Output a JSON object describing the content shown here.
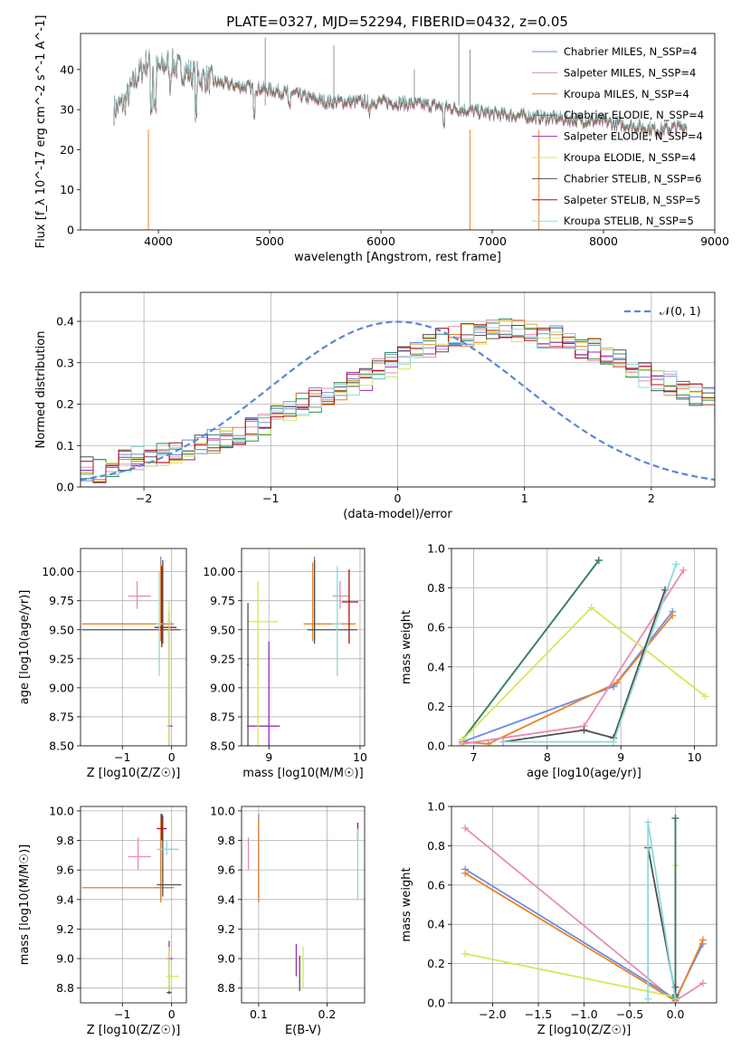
{
  "figure_title": "PLATE=0327, MJD=52294, FIBERID=0432, z=0.05",
  "colors": {
    "chabrier_miles": "#6a8fe0",
    "salpeter_miles": "#e88ab8",
    "kroupa_miles": "#e8822a",
    "chabrier_elodie": "#2e8b57",
    "salpeter_elodie": "#9a2db5",
    "kroupa_elodie": "#d4e85a",
    "chabrier_stelib": "#505050",
    "salpeter_stelib": "#b01010",
    "kroupa_stelib": "#8fd9d9",
    "normal": "#5b87d6"
  },
  "chart_data": [
    {
      "id": "spectrum",
      "type": "line",
      "xlabel": "wavelength [Angstrom, rest frame]",
      "ylabel": "Flux [f_λ 10^-17 erg cm^-2 s^-1 A^-1]",
      "xlim": [
        3300,
        9000
      ],
      "ylim": [
        0,
        49
      ],
      "xticks": [
        4000,
        5000,
        6000,
        7000,
        8000,
        9000
      ],
      "yticks": [
        0,
        10,
        20,
        30,
        40
      ],
      "legend": [
        {
          "name": "Chabrier MILES, N_SSP=4",
          "color": "chabrier_miles"
        },
        {
          "name": "Salpeter MILES, N_SSP=4",
          "color": "salpeter_miles"
        },
        {
          "name": "Kroupa MILES, N_SSP=4",
          "color": "kroupa_miles"
        },
        {
          "name": "Chabrier ELODIE, N_SSP=4",
          "color": "chabrier_elodie"
        },
        {
          "name": "Salpeter ELODIE, N_SSP=4",
          "color": "salpeter_elodie"
        },
        {
          "name": "Kroupa ELODIE, N_SSP=4",
          "color": "kroupa_elodie"
        },
        {
          "name": "Chabrier STELIB, N_SSP=6",
          "color": "chabrier_stelib"
        },
        {
          "name": "Salpeter STELIB, N_SSP=5",
          "color": "salpeter_stelib"
        },
        {
          "name": "Kroupa STELIB, N_SSP=5",
          "color": "kroupa_stelib"
        }
      ],
      "data": {
        "x": [
          3600,
          3700,
          3800,
          3900,
          4000,
          4100,
          4200,
          4300,
          4400,
          4500,
          4700,
          5000,
          5200,
          5500,
          6000,
          6500,
          7000,
          7500,
          8000,
          8500,
          8750
        ],
        "y": [
          30,
          32,
          38,
          42,
          40,
          42,
          40,
          39,
          38,
          37,
          36,
          35,
          34,
          32,
          32,
          31,
          29,
          28,
          27,
          25,
          26
        ]
      }
    },
    {
      "id": "residuals",
      "type": "line",
      "xlabel": "(data-model)/error",
      "ylabel": "Normed distribution",
      "xlim": [
        -2.5,
        2.5
      ],
      "ylim": [
        0,
        0.47
      ],
      "xticks": [
        -2,
        -1,
        0,
        1,
        2
      ],
      "yticks": [
        0.0,
        0.1,
        0.2,
        0.3,
        0.4
      ],
      "legend": [
        {
          "name": "𝒩(0, 1)",
          "color": "normal"
        }
      ],
      "bin_edges_start": -2.5,
      "bin_width": 0.1,
      "hist_mean": [
        0.045,
        0.04,
        0.045,
        0.06,
        0.07,
        0.075,
        0.08,
        0.085,
        0.09,
        0.1,
        0.11,
        0.12,
        0.13,
        0.14,
        0.155,
        0.17,
        0.18,
        0.2,
        0.21,
        0.22,
        0.235,
        0.25,
        0.26,
        0.28,
        0.295,
        0.31,
        0.33,
        0.34,
        0.355,
        0.36,
        0.365,
        0.37,
        0.375,
        0.38,
        0.375,
        0.37,
        0.365,
        0.36,
        0.35,
        0.34,
        0.33,
        0.32,
        0.305,
        0.29,
        0.27,
        0.26,
        0.25,
        0.235,
        0.22,
        0.21,
        0.2,
        0.19,
        0.17,
        0.16,
        0.15,
        0.13,
        0.12,
        0.11,
        0.1,
        0.09,
        0.085,
        0.08,
        0.07,
        0.065,
        0.06,
        0.055,
        0.05,
        0.045,
        0.04,
        0.04
      ]
    },
    {
      "id": "age_vs_Z",
      "type": "scatter",
      "xlabel": "Z [log10(Z/Z☉)]",
      "ylabel": "age [log10(age/yr)]",
      "xlim": [
        -1.85,
        0.3
      ],
      "ylim": [
        8.5,
        10.2
      ],
      "xticks": [
        -1,
        0
      ],
      "yticks": [
        8.5,
        8.75,
        9.0,
        9.25,
        9.5,
        9.75,
        10.0
      ],
      "points": [
        {
          "s": "salpeter_miles",
          "x": -0.7,
          "y": 9.79,
          "xe": [
            -0.88,
            -0.42
          ],
          "ye": [
            9.68,
            9.92
          ]
        },
        {
          "s": "chabrier_miles",
          "x": -0.22,
          "y": 9.55,
          "xe": [
            -1.82,
            0.05
          ],
          "ye": [
            9.42,
            10.13
          ]
        },
        {
          "s": "kroupa_miles",
          "x": -0.22,
          "y": 9.55,
          "xe": [
            -1.82,
            0.0
          ],
          "ye": [
            9.4,
            10.08
          ]
        },
        {
          "s": "chabrier_stelib",
          "x": -0.18,
          "y": 9.5,
          "xe": [
            -1.82,
            0.18
          ],
          "ye": [
            9.38,
            10.1
          ]
        },
        {
          "s": "salpeter_stelib",
          "x": -0.2,
          "y": 9.52,
          "xe": [
            -0.35,
            0.1
          ],
          "ye": [
            9.35,
            10.05
          ]
        },
        {
          "s": "salpeter_elodie",
          "x": -0.05,
          "y": 8.67,
          "xe": [
            -0.08,
            0.02
          ],
          "ye": [
            8.5,
            9.65
          ]
        },
        {
          "s": "kroupa_elodie",
          "x": -0.05,
          "y": 9.57,
          "xe": [
            -0.1,
            0.0
          ],
          "ye": [
            8.5,
            9.75
          ]
        },
        {
          "s": "kroupa_stelib",
          "x": -0.25,
          "y": 9.55,
          "xe": [
            -0.32,
            -0.18
          ],
          "ye": [
            9.1,
            10.0
          ]
        }
      ]
    },
    {
      "id": "age_vs_mass",
      "type": "scatter",
      "xlabel": "mass [log10(M/M☉)]",
      "ylabel": "",
      "xlim": [
        8.7,
        10.05
      ],
      "ylim": [
        8.5,
        10.2
      ],
      "xticks": [
        9,
        10
      ],
      "yticks": [
        8.5,
        8.75,
        9.0,
        9.25,
        9.5,
        9.75,
        10.0
      ],
      "points": [
        {
          "s": "salpeter_miles",
          "x": 9.78,
          "y": 9.79,
          "xe": [
            9.7,
            9.88
          ],
          "ye": [
            9.68,
            9.92
          ]
        },
        {
          "s": "chabrier_miles",
          "x": 9.5,
          "y": 9.55,
          "xe": [
            9.38,
            9.95
          ],
          "ye": [
            9.42,
            10.13
          ]
        },
        {
          "s": "kroupa_miles",
          "x": 9.48,
          "y": 9.55,
          "xe": [
            9.38,
            9.95
          ],
          "ye": [
            9.4,
            10.08
          ]
        },
        {
          "s": "chabrier_stelib",
          "x": 9.5,
          "y": 9.5,
          "xe": [
            9.42,
            9.97
          ],
          "ye": [
            9.38,
            10.1
          ]
        },
        {
          "s": "salpeter_stelib",
          "x": 9.88,
          "y": 9.74,
          "xe": [
            9.8,
            9.98
          ],
          "ye": [
            9.38,
            10.02
          ]
        },
        {
          "s": "salpeter_elodie",
          "x": 9.0,
          "y": 8.67,
          "xe": [
            8.76,
            9.12
          ],
          "ye": [
            8.5,
            9.4
          ]
        },
        {
          "s": "kroupa_elodie",
          "x": 8.88,
          "y": 9.57,
          "xe": [
            8.76,
            9.1
          ],
          "ye": [
            8.5,
            9.92
          ]
        },
        {
          "s": "chabrier_stelib",
          "x": 8.77,
          "y": 9.2,
          "xe": [
            8.76,
            8.78
          ],
          "ye": [
            8.5,
            9.73
          ]
        },
        {
          "s": "kroupa_stelib",
          "x": 9.75,
          "y": 9.55,
          "xe": [
            9.7,
            9.8
          ],
          "ye": [
            9.1,
            10.05
          ]
        }
      ]
    },
    {
      "id": "weight_vs_age",
      "type": "line",
      "xlabel": "age [log10(age/yr)]",
      "ylabel": "mass weight",
      "xlim": [
        6.7,
        10.3
      ],
      "ylim": [
        0,
        1.0
      ],
      "xticks": [
        7,
        8,
        9,
        10
      ],
      "yticks": [
        0.0,
        0.2,
        0.4,
        0.6,
        0.8,
        1.0
      ],
      "series": [
        {
          "s": "chabrier_miles",
          "x": [
            6.85,
            8.9,
            9.7
          ],
          "y": [
            0.02,
            0.3,
            0.68
          ]
        },
        {
          "s": "kroupa_miles",
          "x": [
            6.85,
            7.2,
            8.95,
            9.7
          ],
          "y": [
            0.02,
            0.01,
            0.32,
            0.66
          ]
        },
        {
          "s": "salpeter_miles",
          "x": [
            6.85,
            8.5,
            9.85
          ],
          "y": [
            0.01,
            0.1,
            0.89
          ]
        },
        {
          "s": "salpeter_elodie",
          "x": [
            6.85,
            8.7
          ],
          "y": [
            0.03,
            0.94
          ]
        },
        {
          "s": "chabrier_elodie",
          "x": [
            6.85,
            8.7
          ],
          "y": [
            0.03,
            0.94
          ]
        },
        {
          "s": "kroupa_elodie",
          "x": [
            6.85,
            8.6,
            10.15
          ],
          "y": [
            0.03,
            0.7,
            0.25
          ]
        },
        {
          "s": "chabrier_stelib",
          "x": [
            7.4,
            8.5,
            8.9,
            9.6
          ],
          "y": [
            0.02,
            0.08,
            0.04,
            0.79
          ]
        },
        {
          "s": "kroupa_stelib",
          "x": [
            7.4,
            8.9,
            9.75
          ],
          "y": [
            0.02,
            0.02,
            0.92
          ]
        }
      ]
    },
    {
      "id": "mass_vs_Z",
      "type": "scatter",
      "xlabel": "Z [log10(Z/Z☉)]",
      "ylabel": "mass [log10(M/M☉)]",
      "xlim": [
        -1.85,
        0.3
      ],
      "ylim": [
        8.7,
        10.03
      ],
      "xticks": [
        -1,
        0
      ],
      "yticks": [
        8.8,
        9.0,
        9.2,
        9.4,
        9.6,
        9.8,
        10.0
      ],
      "points": [
        {
          "s": "salpeter_miles",
          "x": -0.68,
          "y": 9.69,
          "xe": [
            -0.88,
            -0.42
          ],
          "ye": [
            9.6,
            9.82
          ]
        },
        {
          "s": "chabrier_miles",
          "x": -0.22,
          "y": 9.48,
          "xe": [
            -0.35,
            0.05
          ],
          "ye": [
            9.4,
            9.98
          ]
        },
        {
          "s": "kroupa_miles",
          "x": -0.22,
          "y": 9.48,
          "xe": [
            -1.82,
            0.0
          ],
          "ye": [
            9.38,
            9.95
          ]
        },
        {
          "s": "chabrier_stelib",
          "x": -0.18,
          "y": 9.5,
          "xe": [
            -0.3,
            0.2
          ],
          "ye": [
            9.42,
            9.97
          ]
        },
        {
          "s": "salpeter_stelib",
          "x": -0.2,
          "y": 9.88,
          "xe": [
            -0.3,
            -0.1
          ],
          "ye": [
            9.8,
            9.98
          ]
        },
        {
          "s": "salpeter_elodie",
          "x": -0.05,
          "y": 9.0,
          "xe": [
            -0.08,
            0.02
          ],
          "ye": [
            8.76,
            9.12
          ]
        },
        {
          "s": "kroupa_elodie",
          "x": -0.05,
          "y": 8.88,
          "xe": [
            -0.1,
            0.15
          ],
          "ye": [
            8.76,
            9.08
          ]
        },
        {
          "s": "chabrier_stelib",
          "x": -0.05,
          "y": 8.77,
          "xe": [
            -0.1,
            0.0
          ],
          "ye": [
            8.76,
            8.78
          ]
        },
        {
          "s": "kroupa_stelib",
          "x": -0.1,
          "y": 9.74,
          "xe": [
            -0.3,
            0.15
          ],
          "ye": [
            9.7,
            9.8
          ]
        }
      ]
    },
    {
      "id": "mass_vs_ebv",
      "type": "scatter",
      "xlabel": "E(B-V)",
      "ylabel": "",
      "xlim": [
        0.075,
        0.255
      ],
      "ylim": [
        8.7,
        10.03
      ],
      "xticks": [
        0.1,
        0.2
      ],
      "yticks": [
        8.8,
        9.0,
        9.2,
        9.4,
        9.6,
        9.8,
        10.0
      ],
      "points": [
        {
          "s": "salpeter_miles",
          "x": 0.085,
          "y": 9.69,
          "xe": [
            0.085,
            0.085
          ],
          "ye": [
            9.6,
            9.82
          ]
        },
        {
          "s": "chabrier_miles",
          "x": 0.1,
          "y": 9.48,
          "xe": [
            0.1,
            0.1
          ],
          "ye": [
            9.4,
            9.98
          ]
        },
        {
          "s": "kroupa_miles",
          "x": 0.1,
          "y": 9.48,
          "xe": [
            0.1,
            0.1
          ],
          "ye": [
            9.38,
            9.95
          ]
        },
        {
          "s": "salpeter_elodie",
          "x": 0.155,
          "y": 9.0,
          "xe": [
            0.155,
            0.155
          ],
          "ye": [
            8.88,
            9.1
          ]
        },
        {
          "s": "chabrier_stelib",
          "x": 0.16,
          "y": 8.9,
          "xe": [
            0.16,
            0.16
          ],
          "ye": [
            8.78,
            9.02
          ]
        },
        {
          "s": "kroupa_elodie",
          "x": 0.165,
          "y": 8.95,
          "xe": [
            0.165,
            0.165
          ],
          "ye": [
            8.8,
            9.08
          ]
        },
        {
          "s": "salpeter_stelib",
          "x": 0.245,
          "y": 9.88,
          "xe": [
            0.245,
            0.245
          ],
          "ye": [
            9.8,
            9.92
          ]
        },
        {
          "s": "kroupa_stelib",
          "x": 0.245,
          "y": 9.6,
          "xe": [
            0.245,
            0.245
          ],
          "ye": [
            9.4,
            9.88
          ]
        }
      ]
    },
    {
      "id": "weight_vs_Z",
      "type": "line",
      "xlabel": "Z [log10(Z/Z☉)]",
      "ylabel": "mass weight",
      "xlim": [
        -2.45,
        0.45
      ],
      "ylim": [
        0,
        1.0
      ],
      "xticks": [
        -2.0,
        -1.5,
        -1.0,
        -0.5,
        0.0
      ],
      "yticks": [
        0.0,
        0.2,
        0.4,
        0.6,
        0.8,
        1.0
      ],
      "series": [
        {
          "s": "salpeter_miles",
          "x": [
            -2.3,
            0.0,
            0.3
          ],
          "y": [
            0.89,
            0.01,
            0.1
          ]
        },
        {
          "s": "chabrier_miles",
          "x": [
            -2.3,
            0.0,
            0.3
          ],
          "y": [
            0.68,
            0.02,
            0.3
          ]
        },
        {
          "s": "kroupa_miles",
          "x": [
            -2.3,
            0.0,
            0.3
          ],
          "y": [
            0.66,
            0.01,
            0.32
          ]
        },
        {
          "s": "kroupa_elodie",
          "x": [
            -2.3,
            0.0,
            0.0
          ],
          "y": [
            0.25,
            0.03,
            0.7
          ]
        },
        {
          "s": "salpeter_elodie",
          "x": [
            0.0,
            0.0
          ],
          "y": [
            0.03,
            0.94
          ]
        },
        {
          "s": "chabrier_elodie",
          "x": [
            0.0,
            0.0
          ],
          "y": [
            0.03,
            0.94
          ]
        },
        {
          "s": "chabrier_stelib",
          "x": [
            -0.3,
            0.0,
            0.0
          ],
          "y": [
            0.79,
            0.04,
            0.08
          ]
        },
        {
          "s": "kroupa_stelib",
          "x": [
            -0.3,
            -0.3,
            0.0
          ],
          "y": [
            0.02,
            0.92,
            0.02
          ]
        }
      ]
    }
  ]
}
